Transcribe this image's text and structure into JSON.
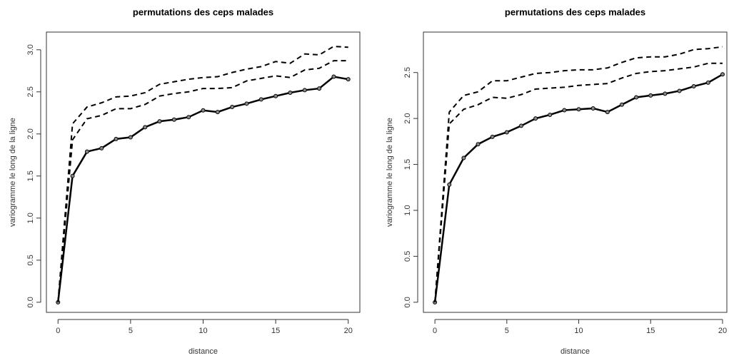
{
  "chart_data": [
    {
      "type": "line",
      "title": "permutations des ceps malades",
      "x_label": "distance",
      "y_label": "variogramme le long de la ligne",
      "x": [
        0,
        1,
        2,
        3,
        4,
        5,
        6,
        7,
        8,
        9,
        10,
        11,
        12,
        13,
        14,
        15,
        16,
        17,
        18,
        19,
        20
      ],
      "xlim": [
        -0.8,
        20.8
      ],
      "ylim": [
        -0.12,
        3.21
      ],
      "xticks": [
        0,
        5,
        10,
        15,
        20
      ],
      "yticks": [
        {
          "value": 0,
          "label": "0.0"
        },
        0.5,
        {
          "value": 1,
          "label": "1.0"
        },
        1.5,
        {
          "value": 2,
          "label": "2.0"
        },
        2.5,
        {
          "value": 3,
          "label": "3.0"
        }
      ],
      "series": [
        {
          "color": "#000000",
          "dashed": false,
          "markers": true,
          "values": [
            0,
            1.5,
            1.79,
            1.83,
            1.94,
            1.96,
            2.08,
            2.15,
            2.17,
            2.2,
            2.28,
            2.26,
            2.32,
            2.36,
            2.41,
            2.45,
            2.49,
            2.52,
            2.54,
            2.68,
            2.65
          ]
        },
        {
          "color": "#000000",
          "dashed": true,
          "markers": false,
          "values": [
            0,
            2.12,
            2.32,
            2.37,
            2.44,
            2.45,
            2.49,
            2.59,
            2.62,
            2.65,
            2.67,
            2.68,
            2.73,
            2.77,
            2.8,
            2.86,
            2.84,
            2.95,
            2.94,
            3.04,
            3.03
          ]
        },
        {
          "color": "#000000",
          "dashed": true,
          "markers": false,
          "values": [
            0,
            1.93,
            2.18,
            2.22,
            2.3,
            2.3,
            2.35,
            2.45,
            2.48,
            2.5,
            2.54,
            2.54,
            2.55,
            2.63,
            2.66,
            2.69,
            2.67,
            2.76,
            2.78,
            2.87,
            2.87
          ]
        }
      ]
    },
    {
      "type": "line",
      "title": "permutations des ceps malades",
      "x_label": "distance",
      "y_label": "variogramme le long de la ligne",
      "x": [
        0,
        1,
        2,
        3,
        4,
        5,
        6,
        7,
        8,
        9,
        10,
        11,
        12,
        13,
        14,
        15,
        16,
        17,
        18,
        19,
        20
      ],
      "xlim": [
        -0.8,
        20.3
      ],
      "ylim": [
        -0.11,
        2.94
      ],
      "xticks": [
        0,
        5,
        10,
        15,
        20
      ],
      "yticks": [
        {
          "value": 0,
          "label": "0.0"
        },
        0.5,
        {
          "value": 1,
          "label": "1.0"
        },
        1.5,
        {
          "value": 2,
          "label": "2.0"
        },
        2.5
      ],
      "series": [
        {
          "color": "#000000",
          "dashed": false,
          "markers": true,
          "values": [
            0,
            1.28,
            1.57,
            1.72,
            1.8,
            1.85,
            1.92,
            2.0,
            2.04,
            2.09,
            2.1,
            2.11,
            2.07,
            2.15,
            2.23,
            2.25,
            2.27,
            2.3,
            2.35,
            2.39,
            2.48
          ]
        },
        {
          "color": "#000000",
          "dashed": true,
          "markers": false,
          "values": [
            0,
            2.07,
            2.25,
            2.29,
            2.41,
            2.41,
            2.45,
            2.49,
            2.5,
            2.52,
            2.53,
            2.53,
            2.55,
            2.61,
            2.66,
            2.67,
            2.67,
            2.7,
            2.75,
            2.76,
            2.78
          ]
        },
        {
          "color": "#000000",
          "dashed": true,
          "markers": false,
          "values": [
            0,
            1.94,
            2.1,
            2.15,
            2.23,
            2.22,
            2.26,
            2.32,
            2.33,
            2.34,
            2.36,
            2.37,
            2.38,
            2.44,
            2.49,
            2.51,
            2.52,
            2.54,
            2.56,
            2.6,
            2.6
          ]
        }
      ]
    }
  ]
}
